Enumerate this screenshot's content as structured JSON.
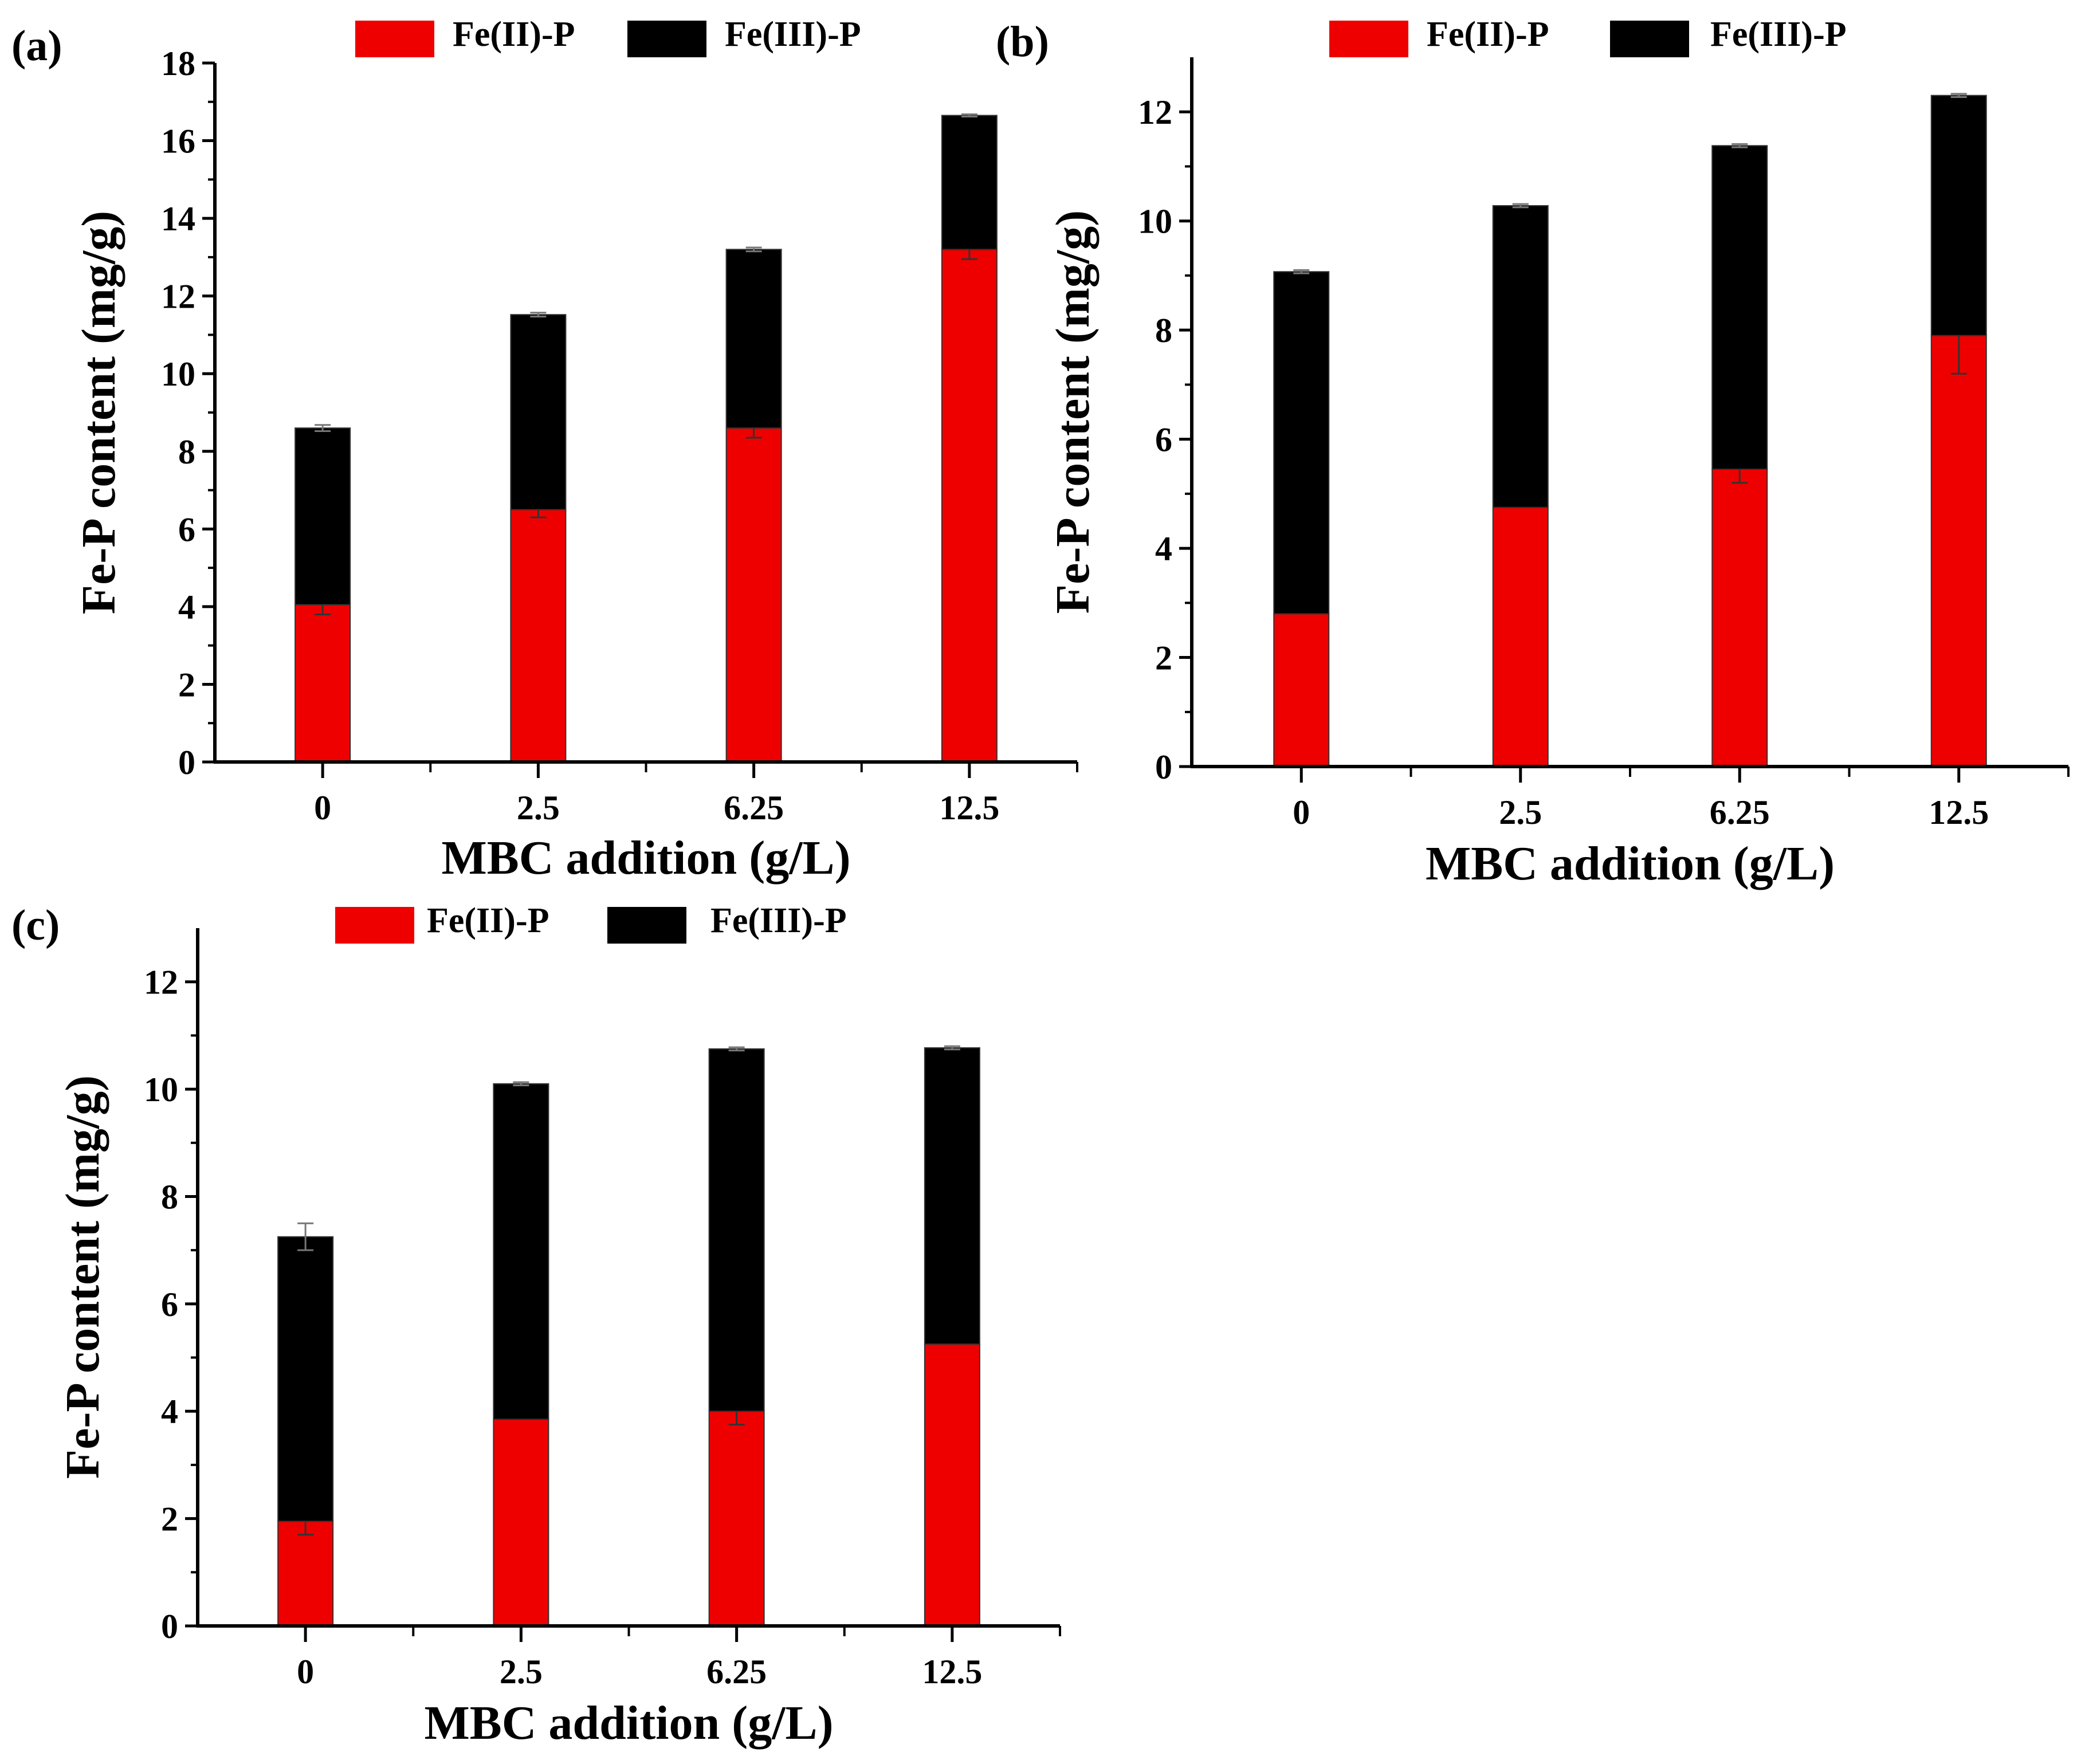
{
  "colors": {
    "fe2": "#ee0000",
    "fe3": "#000000",
    "axis": "#000000"
  },
  "chart_data": [
    {
      "type": "bar",
      "stacked": true,
      "panel_label": "(a)",
      "legend_placement": "top",
      "xlabel": "MBC addition  (g/L)",
      "ylabel": "Fe-P content (mg/g)",
      "ylim": [
        0,
        18
      ],
      "ytick_step": 2,
      "ytick_labels": [
        "0",
        "2",
        "4",
        "6",
        "8",
        "10",
        "12",
        "14",
        "16",
        "18"
      ],
      "categories": [
        "0",
        "2.5",
        "6.25",
        "12.5"
      ],
      "series": [
        {
          "name": "Fe(II)-P",
          "values": [
            4.05,
            6.5,
            8.6,
            13.2
          ],
          "errors": [
            0.25,
            0.2,
            0.25,
            0.25
          ]
        },
        {
          "name": "Fe(III)-P",
          "values": [
            4.55,
            5.02,
            4.6,
            3.45
          ],
          "errors": [
            0.08,
            0.05,
            0.05,
            0.03
          ]
        }
      ]
    },
    {
      "type": "bar",
      "stacked": true,
      "panel_label": "(b)",
      "legend_placement": "top",
      "xlabel": "MBC addition  (g/L)",
      "ylabel": "Fe-P content (mg/g)",
      "ylim": [
        0,
        13
      ],
      "ytick_step": 2,
      "ytick_labels": [
        "0",
        "2",
        "4",
        "6",
        "8",
        "10",
        "12"
      ],
      "categories": [
        "0",
        "2.5",
        "6.25",
        "12.5"
      ],
      "series": [
        {
          "name": "Fe(II)-P",
          "values": [
            2.8,
            4.75,
            5.45,
            7.9
          ],
          "errors": [
            0.0,
            0.0,
            0.25,
            0.7
          ]
        },
        {
          "name": "Fe(III)-P",
          "values": [
            6.27,
            5.53,
            5.93,
            4.4
          ],
          "errors": [
            0.03,
            0.03,
            0.03,
            0.03
          ]
        }
      ]
    },
    {
      "type": "bar",
      "stacked": true,
      "panel_label": "(c)",
      "legend_placement": "top",
      "xlabel": "MBC  addition (g/L)",
      "ylabel": "Fe-P content (mg/g)",
      "ylim": [
        0,
        13
      ],
      "ytick_step": 2,
      "ytick_labels": [
        "0",
        "2",
        "4",
        "6",
        "8",
        "10",
        "12"
      ],
      "categories": [
        "0",
        "2.5",
        "6.25",
        "12.5"
      ],
      "series": [
        {
          "name": "Fe(II)-P",
          "values": [
            1.95,
            3.85,
            4.0,
            5.25
          ],
          "errors": [
            0.25,
            0.0,
            0.25,
            0.0
          ]
        },
        {
          "name": "Fe(III)-P",
          "values": [
            5.3,
            6.25,
            6.75,
            5.52
          ],
          "errors": [
            0.25,
            0.03,
            0.03,
            0.03
          ]
        }
      ]
    }
  ]
}
